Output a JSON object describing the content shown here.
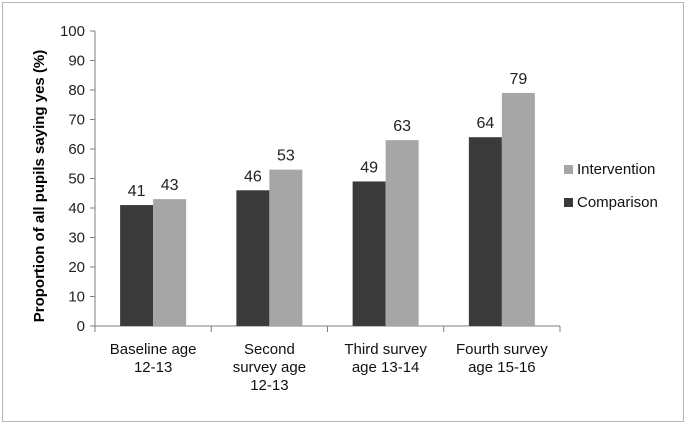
{
  "chart_data": {
    "type": "bar",
    "ylabel": "Proportion of all pupils saying yes (%)",
    "xlabel": "",
    "ylim": [
      0,
      100
    ],
    "yticks": [
      0,
      10,
      20,
      30,
      40,
      50,
      60,
      70,
      80,
      90,
      100
    ],
    "categories": [
      [
        "Baseline age",
        "12-13"
      ],
      [
        "Second",
        "survey age",
        "12-13"
      ],
      [
        "Third survey",
        "age 13-14"
      ],
      [
        "Fourth survey",
        "age 15-16"
      ]
    ],
    "series": [
      {
        "name": "Comparison",
        "color": "#3a3a3a",
        "values": [
          41,
          46,
          49,
          64
        ]
      },
      {
        "name": "Intervention",
        "color": "#a6a6a6",
        "values": [
          43,
          53,
          63,
          79
        ]
      }
    ],
    "legend": {
      "position": "right",
      "order": [
        "Intervention",
        "Comparison"
      ]
    },
    "grid": false
  }
}
